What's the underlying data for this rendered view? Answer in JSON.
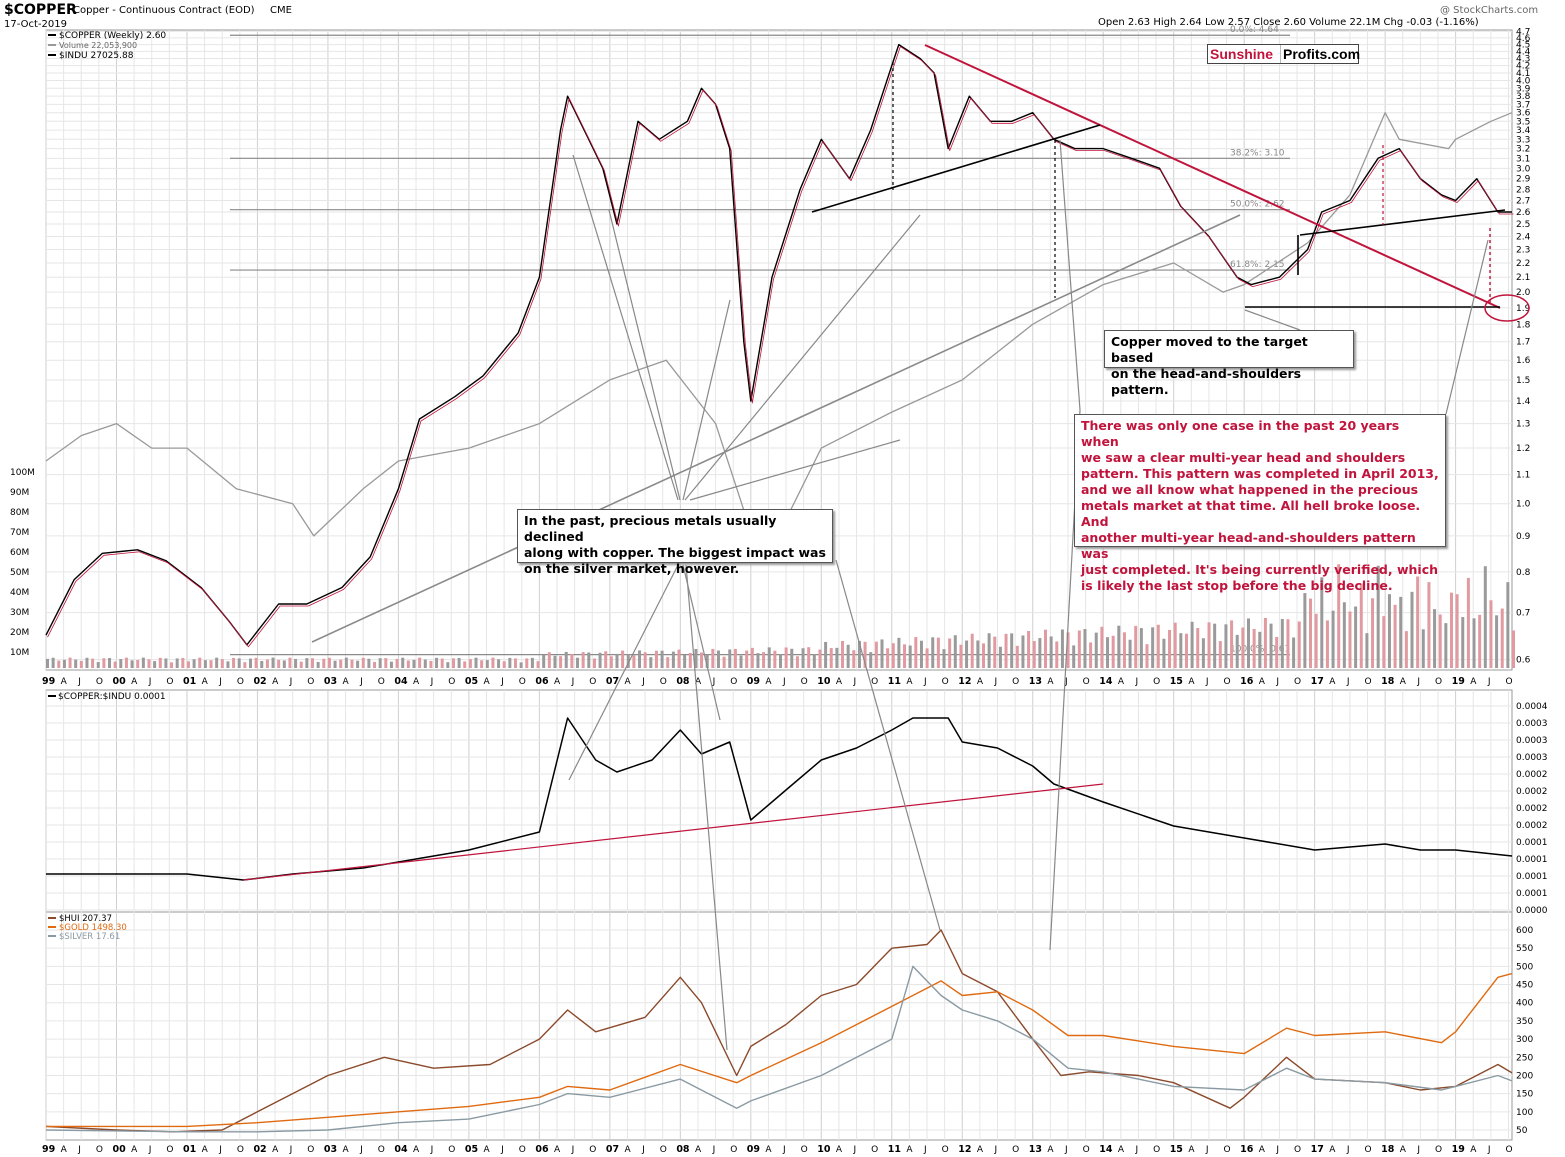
{
  "header": {
    "symbol": "$COPPER",
    "title": "Copper - Continuous Contract (EOD)",
    "exchange": "CME",
    "date": "17-Oct-2019",
    "watermark": "@ StockCharts.com",
    "ohlc": "Open 2.63  High 2.64  Low 2.57  Close 2.60  Volume 22.1M  Chg -0.03 (-1.16%)"
  },
  "brand": {
    "part1": "Sunshine",
    "part2": "Profits.com"
  },
  "annotations": {
    "target": "Copper moved to the target based\non the head-and-shoulders pattern.",
    "hs": "There was only one case in the past 20 years when\nwe saw a clear multi-year head and shoulders\npattern. This pattern was completed in April 2013,\nand we all know what happened in the precious\nmetals market at that time. All hell broke loose. And\n another multi-year head-and-shoulders pattern was\njust completed. It's being currently verified, which\nis  likely the last stop before the big decline.",
    "past": "In the past, precious metals usually declined\nalong with copper. The biggest impact was\non the silver market, however."
  },
  "chart_data": [
    {
      "type": "line",
      "panel": "price",
      "legend": [
        "$COPPER (Weekly) 2.60",
        "Volume 22,053,900",
        "$INDU 27025.88"
      ],
      "x_years": [
        "99",
        "00",
        "01",
        "02",
        "03",
        "04",
        "05",
        "06",
        "07",
        "08",
        "09",
        "10",
        "11",
        "12",
        "13",
        "14",
        "15",
        "16",
        "17",
        "18",
        "19"
      ],
      "month_labels": [
        "A",
        "J",
        "O"
      ],
      "x_range": [
        1999.0,
        2019.8
      ],
      "y_scale": "log",
      "y_ticks": [
        0.6,
        0.7,
        0.8,
        0.9,
        1.0,
        1.1,
        1.2,
        1.3,
        1.4,
        1.5,
        1.6,
        1.7,
        1.8,
        1.9,
        2.0,
        2.1,
        2.2,
        2.3,
        2.4,
        2.5,
        2.6,
        2.7,
        2.8,
        2.9,
        3.0,
        3.1,
        3.2,
        3.3,
        3.4,
        3.5,
        3.6,
        3.7,
        3.8,
        3.9,
        4.0,
        4.1,
        4.2,
        4.3,
        4.4,
        4.5,
        4.6,
        4.7
      ],
      "volume_ticks": [
        "10M",
        "20M",
        "30M",
        "40M",
        "50M",
        "60M",
        "70M",
        "80M",
        "90M",
        "100M"
      ],
      "fib_levels": [
        {
          "label": "0.0%: 4.64",
          "value": 4.64
        },
        {
          "label": "38.2%: 3.10",
          "value": 3.1
        },
        {
          "label": "50.0%: 2.62",
          "value": 2.62
        },
        {
          "label": "61.8%: 2.15",
          "value": 2.15
        },
        {
          "label": "100.0%: 0.61",
          "value": 0.61
        }
      ],
      "series": [
        {
          "name": "$COPPER (Weekly)",
          "color": "#000000",
          "x": [
            1999.0,
            1999.4,
            1999.8,
            2000.3,
            2000.7,
            2001.2,
            2001.6,
            2001.85,
            2002.3,
            2002.7,
            2003.2,
            2003.6,
            2004.0,
            2004.3,
            2004.8,
            2005.2,
            2005.7,
            2006.0,
            2006.3,
            2006.4,
            2006.7,
            2006.9,
            2007.1,
            2007.4,
            2007.7,
            2008.1,
            2008.3,
            2008.5,
            2008.7,
            2008.9,
            2009.0,
            2009.3,
            2009.7,
            2010.0,
            2010.4,
            2010.7,
            2011.0,
            2011.1,
            2011.4,
            2011.6,
            2011.8,
            2012.1,
            2012.4,
            2012.7,
            2013.0,
            2013.3,
            2013.6,
            2014.0,
            2014.4,
            2014.8,
            2015.1,
            2015.5,
            2015.9,
            2016.1,
            2016.5,
            2016.9,
            2017.1,
            2017.5,
            2017.9,
            2018.2,
            2018.5,
            2018.8,
            2019.0,
            2019.3,
            2019.6,
            2019.8
          ],
          "y": [
            0.65,
            0.78,
            0.85,
            0.86,
            0.83,
            0.76,
            0.68,
            0.63,
            0.72,
            0.72,
            0.76,
            0.84,
            1.05,
            1.32,
            1.42,
            1.52,
            1.75,
            2.1,
            3.4,
            3.8,
            3.3,
            3.0,
            2.5,
            3.5,
            3.3,
            3.5,
            3.9,
            3.7,
            3.2,
            1.7,
            1.4,
            2.1,
            2.8,
            3.3,
            2.9,
            3.4,
            4.2,
            4.5,
            4.3,
            4.1,
            3.2,
            3.8,
            3.5,
            3.5,
            3.6,
            3.3,
            3.2,
            3.2,
            3.1,
            3.0,
            2.65,
            2.4,
            2.1,
            2.05,
            2.1,
            2.3,
            2.6,
            2.7,
            3.1,
            3.2,
            2.9,
            2.75,
            2.7,
            2.9,
            2.6,
            2.6
          ]
        },
        {
          "name": "$INDU",
          "color": "#999999",
          "x": [
            1999.0,
            1999.5,
            2000.0,
            2000.5,
            2001.0,
            2001.7,
            2002.5,
            2002.8,
            2003.5,
            2004.0,
            2005.0,
            2006.0,
            2007.0,
            2007.8,
            2008.5,
            2009.1,
            2009.5,
            2010.0,
            2011.0,
            2012.0,
            2013.0,
            2014.0,
            2015.0,
            2015.7,
            2016.0,
            2016.9,
            2017.5,
            2018.0,
            2018.2,
            2018.9,
            2019.0,
            2019.5,
            2019.8
          ],
          "y": [
            1.15,
            1.25,
            1.3,
            1.2,
            1.2,
            1.05,
            1.0,
            0.9,
            1.05,
            1.15,
            1.2,
            1.3,
            1.5,
            1.6,
            1.3,
            0.85,
            0.95,
            1.2,
            1.35,
            1.5,
            1.8,
            2.05,
            2.2,
            2.0,
            2.05,
            2.35,
            2.75,
            3.6,
            3.3,
            3.2,
            3.3,
            3.5,
            3.6
          ]
        }
      ]
    },
    {
      "type": "line",
      "panel": "ratio",
      "legend": [
        "$COPPER:$INDU 0.0001"
      ],
      "y_ticks": [
        "0.0000",
        "0.0001",
        "0.0001",
        "0.0001",
        "0.0001",
        "0.0002",
        "0.0002",
        "0.0002",
        "0.0002",
        "0.0003",
        "0.0003",
        "0.0003",
        "0.0004"
      ],
      "series": [
        {
          "name": "$COPPER:$INDU",
          "color": "#000000",
          "x": [
            1999.0,
            2000.0,
            2001.0,
            2001.8,
            2002.5,
            2003.5,
            2004.0,
            2005.0,
            2006.0,
            2006.4,
            2006.8,
            2007.1,
            2007.6,
            2008.0,
            2008.3,
            2008.7,
            2009.0,
            2009.5,
            2010.0,
            2010.5,
            2011.0,
            2011.3,
            2011.8,
            2012.0,
            2012.5,
            2013.0,
            2013.3,
            2014.0,
            2015.0,
            2016.0,
            2017.0,
            2018.0,
            2018.5,
            2019.0,
            2019.8
          ],
          "y": [
            6e-05,
            6e-05,
            6e-05,
            5e-05,
            6e-05,
            7e-05,
            8e-05,
            0.0001,
            0.00013,
            0.00032,
            0.00025,
            0.00023,
            0.00025,
            0.0003,
            0.00026,
            0.00028,
            0.00015,
            0.0002,
            0.00025,
            0.00027,
            0.0003,
            0.00032,
            0.00032,
            0.00028,
            0.00027,
            0.00024,
            0.00021,
            0.00018,
            0.00014,
            0.00012,
            0.0001,
            0.00011,
            0.0001,
            0.0001,
            9e-05
          ]
        },
        {
          "name": "trendline",
          "color": "#c0143c",
          "x": [
            2001.8,
            2014.0
          ],
          "y": [
            5e-05,
            0.00021
          ]
        }
      ]
    },
    {
      "type": "line",
      "panel": "precious-metals",
      "legend": [
        "$HUI 207.37",
        "$GOLD 1498.30",
        "$SILVER 17.61"
      ],
      "y_ticks": [
        50,
        100,
        150,
        200,
        250,
        300,
        350,
        400,
        450,
        500,
        550,
        600
      ],
      "series": [
        {
          "name": "$HUI",
          "color": "#8b4a2b",
          "x": [
            1999.0,
            2000.0,
            2000.8,
            2001.5,
            2002.0,
            2002.5,
            2003.0,
            2003.8,
            2004.5,
            2005.3,
            2006.0,
            2006.4,
            2006.8,
            2007.5,
            2008.0,
            2008.3,
            2008.8,
            2009.0,
            2009.5,
            2010.0,
            2010.5,
            2011.0,
            2011.5,
            2011.7,
            2012.0,
            2012.5,
            2013.0,
            2013.4,
            2013.8,
            2014.5,
            2015.0,
            2015.8,
            2016.0,
            2016.6,
            2017.0,
            2018.0,
            2018.5,
            2019.0,
            2019.6,
            2019.8
          ],
          "y": [
            60,
            50,
            45,
            50,
            100,
            150,
            200,
            250,
            220,
            230,
            300,
            380,
            320,
            360,
            470,
            400,
            200,
            280,
            340,
            420,
            450,
            550,
            560,
            600,
            480,
            430,
            300,
            200,
            210,
            200,
            180,
            110,
            140,
            250,
            190,
            180,
            160,
            170,
            230,
            207
          ]
        },
        {
          "name": "$GOLD",
          "color": "#e06a10",
          "x": [
            1999.0,
            2001.0,
            2002.0,
            2003.0,
            2004.0,
            2005.0,
            2006.0,
            2006.4,
            2007.0,
            2008.0,
            2008.8,
            2009.0,
            2010.0,
            2011.0,
            2011.7,
            2012.0,
            2012.5,
            2013.0,
            2013.5,
            2014.0,
            2015.0,
            2016.0,
            2016.6,
            2017.0,
            2018.0,
            2018.8,
            2019.0,
            2019.6,
            2019.8
          ],
          "y": [
            60,
            60,
            70,
            85,
            100,
            115,
            140,
            170,
            160,
            230,
            180,
            200,
            290,
            390,
            460,
            420,
            430,
            380,
            310,
            310,
            280,
            260,
            330,
            310,
            320,
            290,
            320,
            470,
            480
          ]
        },
        {
          "name": "$SILVER",
          "color": "#8a9aa3",
          "x": [
            1999.0,
            2001.0,
            2002.0,
            2003.0,
            2004.0,
            2005.0,
            2006.0,
            2006.4,
            2007.0,
            2008.0,
            2008.8,
            2009.0,
            2010.0,
            2011.0,
            2011.3,
            2011.7,
            2012.0,
            2012.5,
            2013.0,
            2013.5,
            2014.0,
            2015.0,
            2016.0,
            2016.6,
            2017.0,
            2018.0,
            2018.8,
            2019.0,
            2019.6,
            2019.8
          ],
          "y": [
            50,
            45,
            45,
            50,
            70,
            80,
            120,
            150,
            140,
            190,
            110,
            130,
            200,
            300,
            500,
            420,
            380,
            350,
            300,
            220,
            210,
            170,
            160,
            220,
            190,
            180,
            160,
            170,
            200,
            185
          ]
        }
      ]
    }
  ]
}
